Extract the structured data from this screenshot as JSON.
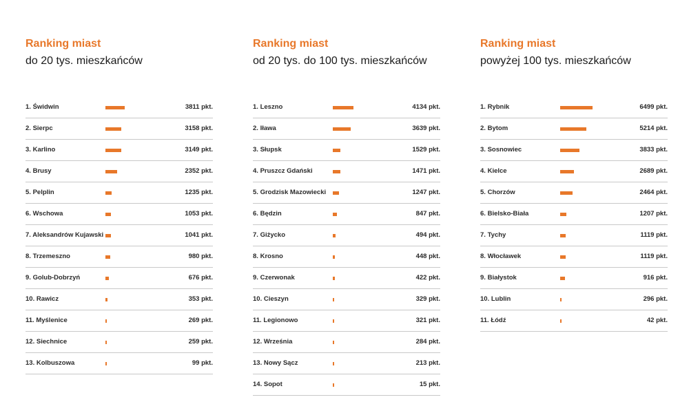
{
  "colors": {
    "accent": "#e8782a",
    "text": "#1a1a1a",
    "divider": "#c8c8c8"
  },
  "chart_data": [
    {
      "type": "bar",
      "orientation": "horizontal",
      "title": "Ranking miast",
      "subtitle": "do 20 tys. mieszkańców",
      "unit": "pkt.",
      "rows": [
        {
          "rank": "1.",
          "name": "Świdwin",
          "value": 3811,
          "value_label": "3811 pkt."
        },
        {
          "rank": "2.",
          "name": "Sierpc",
          "value": 3158,
          "value_label": "3158 pkt."
        },
        {
          "rank": "3.",
          "name": "Karlino",
          "value": 3149,
          "value_label": "3149 pkt."
        },
        {
          "rank": "4.",
          "name": "Brusy",
          "value": 2352,
          "value_label": "2352 pkt."
        },
        {
          "rank": "5.",
          "name": "Pelplin",
          "value": 1235,
          "value_label": "1235 pkt."
        },
        {
          "rank": "6.",
          "name": "Wschowa",
          "value": 1053,
          "value_label": "1053 pkt."
        },
        {
          "rank": "7.",
          "name": "Aleksandrów Kujawski",
          "value": 1041,
          "value_label": "1041 pkt."
        },
        {
          "rank": "8.",
          "name": "Trzemeszno",
          "value": 980,
          "value_label": "980 pkt."
        },
        {
          "rank": "9.",
          "name": "Golub-Dobrzyń",
          "value": 676,
          "value_label": "676 pkt."
        },
        {
          "rank": "10.",
          "name": "Rawicz",
          "value": 353,
          "value_label": "353 pkt."
        },
        {
          "rank": "11.",
          "name": "Myślenice",
          "value": 269,
          "value_label": "269 pkt."
        },
        {
          "rank": "12.",
          "name": "Siechnice",
          "value": 259,
          "value_label": "259 pkt."
        },
        {
          "rank": "13.",
          "name": "Kolbuszowa",
          "value": 99,
          "value_label": "99 pkt."
        }
      ]
    },
    {
      "type": "bar",
      "orientation": "horizontal",
      "title": "Ranking miast",
      "subtitle": "od 20 tys. do 100 tys. mieszkańców",
      "unit": "pkt.",
      "rows": [
        {
          "rank": "1.",
          "name": "Leszno",
          "value": 4134,
          "value_label": "4134 pkt."
        },
        {
          "rank": "2.",
          "name": "Iława",
          "value": 3639,
          "value_label": "3639 pkt."
        },
        {
          "rank": "3.",
          "name": "Słupsk",
          "value": 1529,
          "value_label": "1529 pkt."
        },
        {
          "rank": "4.",
          "name": "Pruszcz Gdański",
          "value": 1471,
          "value_label": "1471 pkt."
        },
        {
          "rank": "5.",
          "name": "Grodzisk Mazowiecki",
          "value": 1247,
          "value_label": "1247 pkt."
        },
        {
          "rank": "6.",
          "name": "Będzin",
          "value": 847,
          "value_label": "847 pkt."
        },
        {
          "rank": "7.",
          "name": "Giżycko",
          "value": 494,
          "value_label": "494 pkt."
        },
        {
          "rank": "8.",
          "name": "Krosno",
          "value": 448,
          "value_label": "448 pkt."
        },
        {
          "rank": "9.",
          "name": "Czerwonak",
          "value": 422,
          "value_label": "422 pkt."
        },
        {
          "rank": "10.",
          "name": "Cieszyn",
          "value": 329,
          "value_label": "329 pkt."
        },
        {
          "rank": "11.",
          "name": "Legionowo",
          "value": 321,
          "value_label": "321 pkt."
        },
        {
          "rank": "12.",
          "name": "Września",
          "value": 284,
          "value_label": "284 pkt."
        },
        {
          "rank": "13.",
          "name": "Nowy Sącz",
          "value": 213,
          "value_label": "213 pkt."
        },
        {
          "rank": "14.",
          "name": "Sopot",
          "value": 15,
          "value_label": "15 pkt."
        }
      ]
    },
    {
      "type": "bar",
      "orientation": "horizontal",
      "title": "Ranking miast",
      "subtitle": "powyżej 100 tys. mieszkańców",
      "unit": "pkt.",
      "rows": [
        {
          "rank": "1.",
          "name": "Rybnik",
          "value": 6499,
          "value_label": "6499 pkt."
        },
        {
          "rank": "2.",
          "name": "Bytom",
          "value": 5214,
          "value_label": "5214 pkt."
        },
        {
          "rank": "3.",
          "name": "Sosnowiec",
          "value": 3833,
          "value_label": "3833 pkt."
        },
        {
          "rank": "4.",
          "name": "Kielce",
          "value": 2689,
          "value_label": "2689 pkt."
        },
        {
          "rank": "5.",
          "name": "Chorzów",
          "value": 2464,
          "value_label": "2464 pkt."
        },
        {
          "rank": "6.",
          "name": "Bielsko-Biała",
          "value": 1207,
          "value_label": "1207 pkt."
        },
        {
          "rank": "7.",
          "name": "Tychy",
          "value": 1119,
          "value_label": "1119 pkt."
        },
        {
          "rank": "8.",
          "name": "Włocławek",
          "value": 1119,
          "value_label": "1119 pkt."
        },
        {
          "rank": "9.",
          "name": "Białystok",
          "value": 916,
          "value_label": "916 pkt."
        },
        {
          "rank": "10.",
          "name": "Lublin",
          "value": 296,
          "value_label": "296 pkt."
        },
        {
          "rank": "11.",
          "name": "Łódź",
          "value": 42,
          "value_label": "42 pkt."
        }
      ]
    }
  ]
}
